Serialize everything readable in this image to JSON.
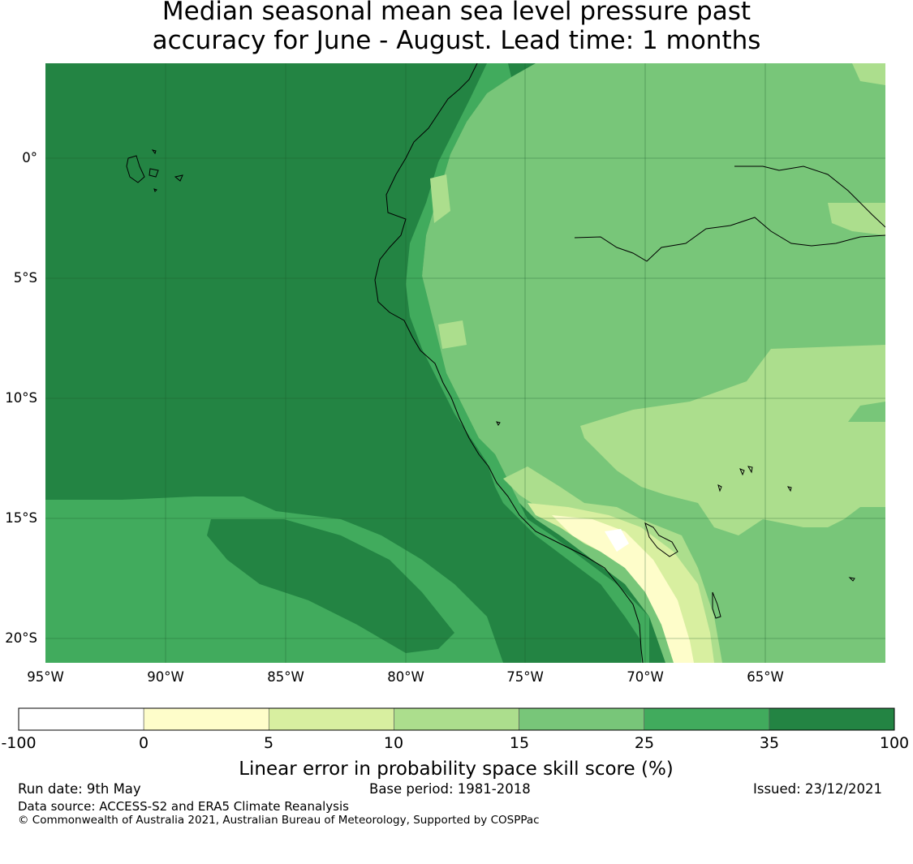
{
  "title": {
    "line1": "Median seasonal mean sea level pressure past",
    "line2": "accuracy for June - August. Lead time: 1 months"
  },
  "map": {
    "lon_ticks": [
      "95°W",
      "90°W",
      "85°W",
      "80°W",
      "75°W",
      "70°W",
      "65°W"
    ],
    "lat_ticks": [
      "0°",
      "5°S",
      "10°S",
      "15°S",
      "20°S"
    ],
    "extent": {
      "lon_min": -95,
      "lon_max": -60,
      "lat_min": -21,
      "lat_max": 4
    }
  },
  "colorbar": {
    "label": "Linear error in probability space skill score (%)",
    "ticks": [
      "-100",
      "0",
      "5",
      "10",
      "15",
      "25",
      "35",
      "100"
    ],
    "colors": [
      "#ffffff",
      "#fefdca",
      "#d8efa0",
      "#acde8d",
      "#78c679",
      "#41ab5d",
      "#238443"
    ]
  },
  "footer": {
    "run_date": "Run date: 9th May",
    "base_period": "Base period: 1981-2018",
    "issued": "Issued: 23/12/2021",
    "data_source": "Data source: ACCESS-S2 and ERA5 Climate Reanalysis",
    "copyright": "© Commonwealth of Australia 2021, Australian Bureau of Meteorology, Supported by COSPPac"
  }
}
